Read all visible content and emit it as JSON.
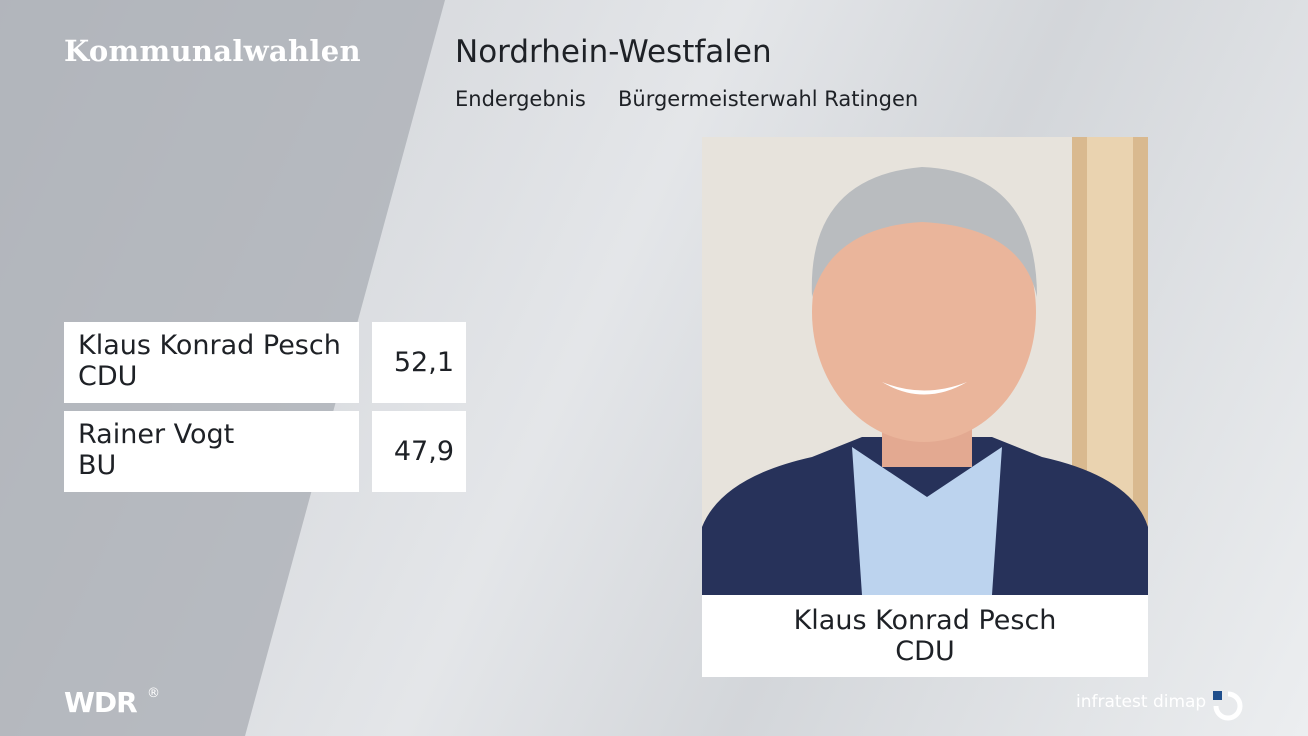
{
  "header": {
    "label": "Kommunalwahlen",
    "title": "Nordrhein-Westfalen",
    "status": "Endergebnis",
    "election": "Bürgermeisterwahl Ratingen"
  },
  "results": {
    "rows": [
      {
        "name": "Klaus Konrad Pesch",
        "party": "CDU",
        "share": "52,1"
      },
      {
        "name": "Rainer Vogt",
        "party": "BU",
        "share": "47,9"
      }
    ]
  },
  "winner": {
    "name": "Klaus Konrad Pesch",
    "party": "CDU"
  },
  "footer": {
    "broadcaster": "WDR",
    "broadcaster_mark": "®",
    "pollster": "infratest dimap"
  }
}
